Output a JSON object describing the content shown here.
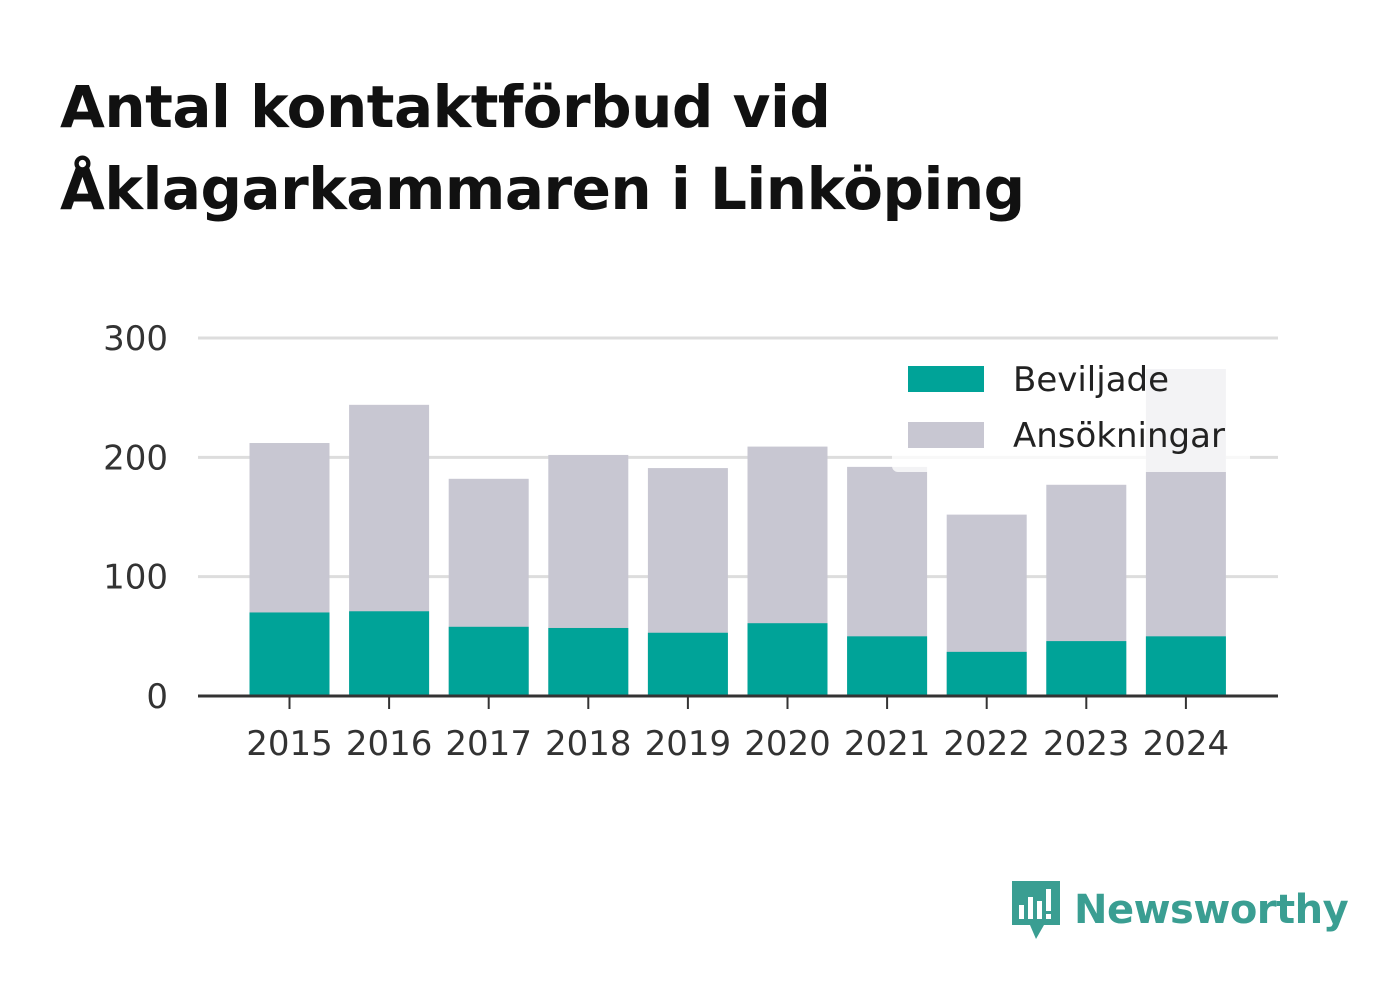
{
  "title": {
    "line1": "Antal kontaktförbud vid",
    "line2": "Åklagarkammaren i Linköping"
  },
  "brand": {
    "name": "Newsworthy",
    "icon": "newsworthy-logo-icon",
    "color": "#3a9e92"
  },
  "chart_data": {
    "type": "bar",
    "stacked": false,
    "overlapping": true,
    "categories": [
      "2015",
      "2016",
      "2017",
      "2018",
      "2019",
      "2020",
      "2021",
      "2022",
      "2023",
      "2024"
    ],
    "series": [
      {
        "name": "Beviljade",
        "color": "#00a398",
        "values": [
          70,
          71,
          58,
          57,
          53,
          61,
          50,
          37,
          46,
          50
        ]
      },
      {
        "name": "Ansökningar",
        "color": "#c8c7d2",
        "values": [
          212,
          244,
          182,
          202,
          191,
          209,
          192,
          152,
          177,
          274
        ]
      }
    ],
    "ylim": [
      0,
      300
    ],
    "yticks": [
      "0",
      "100",
      "200",
      "300"
    ],
    "grid": true,
    "legend": "top-right",
    "xlabel": "",
    "ylabel": ""
  }
}
